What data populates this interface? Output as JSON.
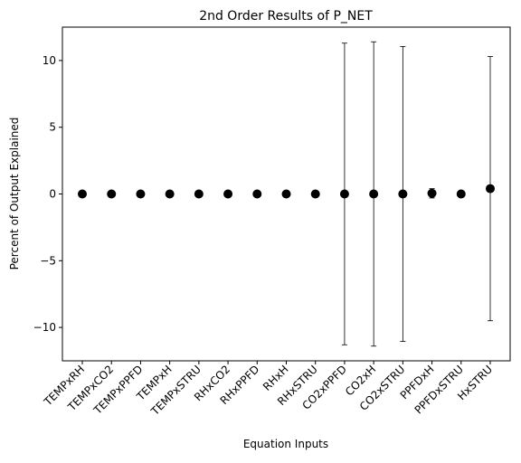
{
  "chart_data": {
    "type": "scatter",
    "title": "2nd Order Results of P_NET",
    "xlabel": "Equation Inputs",
    "ylabel": "Percent of Output Explained",
    "categories": [
      "TEMPxRH",
      "TEMPxCO2",
      "TEMPxPPFD",
      "TEMPxH",
      "TEMPxSTRU",
      "RHxCO2",
      "RHxPPFD",
      "RHxH",
      "RHxSTRU",
      "CO2xPPFD",
      "CO2xH",
      "CO2xSTRU",
      "PPFDxH",
      "PPFDxSTRU",
      "HxSTRU"
    ],
    "values": [
      0,
      0,
      0,
      0,
      0,
      0,
      0,
      0,
      0,
      0,
      0,
      0,
      0.05,
      0,
      0.4
    ],
    "errors": [
      0,
      0,
      0,
      0,
      0,
      0,
      0,
      0,
      0,
      11.3,
      11.4,
      11.05,
      0.35,
      0,
      9.9
    ],
    "ylim": [
      -12.5,
      12.5
    ],
    "yticks": [
      -10,
      -5,
      0,
      5,
      10
    ],
    "ytick_labels": [
      "−10",
      "−5",
      "0",
      "5",
      "10"
    ],
    "grid": false,
    "marker_color": "#000000"
  }
}
